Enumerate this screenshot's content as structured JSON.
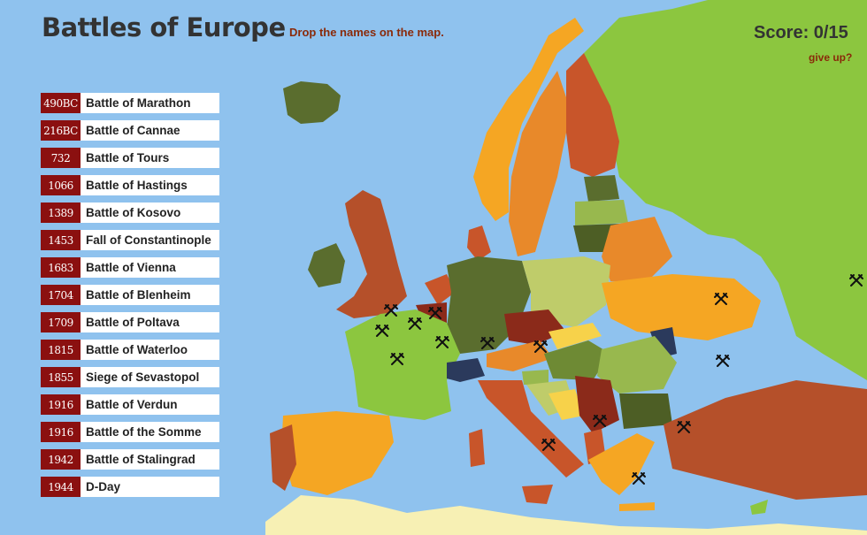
{
  "header": {
    "title": "Battles of Europe",
    "instruction": "Drop the names on the map.",
    "score": "Score:  0/15",
    "give_up": "give up?"
  },
  "battles": [
    {
      "year": "490BC",
      "name": "Battle of Marathon"
    },
    {
      "year": "216BC",
      "name": "Battle of Cannae"
    },
    {
      "year": "732",
      "name": "Battle of Tours"
    },
    {
      "year": "1066",
      "name": "Battle of Hastings"
    },
    {
      "year": "1389",
      "name": "Battle of Kosovo"
    },
    {
      "year": "1453",
      "name": "Fall of Constantinople"
    },
    {
      "year": "1683",
      "name": "Battle of Vienna"
    },
    {
      "year": "1704",
      "name": "Battle of Blenheim"
    },
    {
      "year": "1709",
      "name": "Battle of Poltava"
    },
    {
      "year": "1815",
      "name": "Battle of Waterloo"
    },
    {
      "year": "1855",
      "name": "Siege of Sevastopol"
    },
    {
      "year": "1916",
      "name": "Battle of Verdun"
    },
    {
      "year": "1916",
      "name": "Battle of the Somme"
    },
    {
      "year": "1942",
      "name": "Battle of Stalingrad"
    },
    {
      "year": "1944",
      "name": "D-Day"
    }
  ],
  "map": {
    "sea_color": "#8fc2ee",
    "marker_icon": "crossed-swords-icon"
  }
}
